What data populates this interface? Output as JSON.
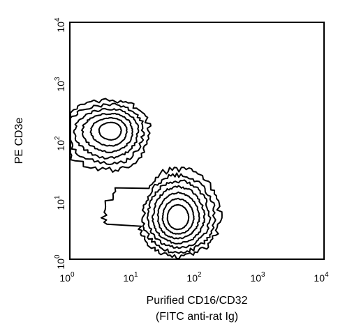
{
  "chart_data": {
    "type": "contour",
    "xlabel_line1": "Purified CD16/CD32",
    "xlabel_line2": "(FITC anti-rat Ig)",
    "ylabel": "PE CD3e",
    "xscale": "log",
    "yscale": "log",
    "xlim": [
      1,
      10000
    ],
    "ylim": [
      1,
      10000
    ],
    "grid": false,
    "legend": "none",
    "x_ticks": [
      {
        "base": "10",
        "exp": "0",
        "value": 1
      },
      {
        "base": "10",
        "exp": "1",
        "value": 10
      },
      {
        "base": "10",
        "exp": "2",
        "value": 100
      },
      {
        "base": "10",
        "exp": "3",
        "value": 1000
      },
      {
        "base": "10",
        "exp": "4",
        "value": 10000
      }
    ],
    "y_ticks": [
      {
        "base": "10",
        "exp": "0",
        "value": 1
      },
      {
        "base": "10",
        "exp": "1",
        "value": 10
      },
      {
        "base": "10",
        "exp": "2",
        "value": 100
      },
      {
        "base": "10",
        "exp": "3",
        "value": 1000
      },
      {
        "base": "10",
        "exp": "4",
        "value": 10000
      }
    ],
    "populations": [
      {
        "center_x": 4.5,
        "center_y": 150,
        "levels": 6,
        "x_range": [
          1,
          25
        ],
        "y_range": [
          30,
          350
        ]
      },
      {
        "center_x": 50,
        "center_y": 5,
        "levels": 7,
        "x_range": [
          3.5,
          300
        ],
        "y_range": [
          1,
          30
        ]
      }
    ]
  }
}
